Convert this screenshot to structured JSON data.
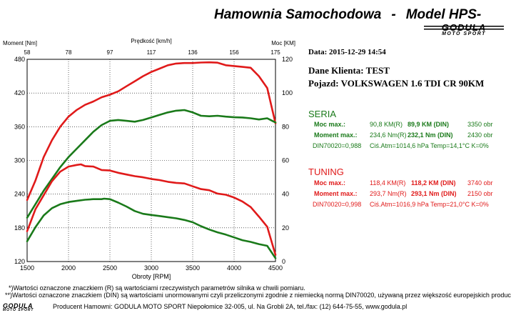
{
  "header": {
    "title_left": "Hamownia Samochodowa",
    "title_sep": "-",
    "title_right": "Model HPS-",
    "logo_main": "GODULA",
    "logo_sub": "MOTO SPORT"
  },
  "info": {
    "date": "Data: 2015-12-29  14:54",
    "client": "Dane Klienta: TEST",
    "vehicle": "Pojazd: VOLKSWAGEN 1.6 TDI CR 90KM"
  },
  "seria": {
    "heading": "SERIA",
    "power_label": "Moc max.:",
    "power_r": "90,8 KM(R)",
    "power_din": "89,9 KM (DIN)",
    "power_rpm": "3350 obr",
    "torque_label": "Moment max.:",
    "torque_r": "234,6 Nm(R)",
    "torque_din": "232,1 Nm (DIN)",
    "torque_rpm": "2430 obr",
    "norm": "DIN70020=0,988",
    "conditions": "Ciś.Atm=1014,6 hPa  Temp=14,1°C  K=0%"
  },
  "tuning": {
    "heading": "TUNING",
    "power_label": "Moc max.:",
    "power_r": "118,4 KM(R)",
    "power_din": "118,2 KM (DIN)",
    "power_rpm": "3740 obr",
    "torque_label": "Moment max.:",
    "torque_r": "293,7 Nm(R)",
    "torque_din": "293,1 Nm (DIN)",
    "torque_rpm": "2150 obr",
    "norm": "DIN70020=0,998",
    "conditions": "Ciś.Atm=1016,9 hPa  Temp=21,0°C  K=0%"
  },
  "footer": {
    "note1": "*)Wartości oznaczone znaczkiem (R) są wartościami rzeczywistych parametrów silnika w chwili pomiaru.",
    "note2": "**)Wartości oznaczone znaczkiem (DIN) są wartościami unormowanymi czyli przeliczonymi zgodnie z niemiecką normą DIN70020, używaną przez większość europejskich producentów.",
    "producer": "Producent Hamowni: GODULA MOTO SPORT Niepołomice 32-005, ul. Na Grobli 2A, tel./fax: (12) 644-75-55, www.godula.pl",
    "logo_main": "GODULA",
    "logo_sub": "MOTO SPORT"
  },
  "colors": {
    "seria": "#1a7a1a",
    "tuning": "#e01a1a",
    "grid": "#000000"
  },
  "chart_data": {
    "type": "line",
    "top_axis_label": "Prędkość [km/h]",
    "top_ticks": [
      "58",
      "78",
      "97",
      "117",
      "136",
      "156",
      "175"
    ],
    "left_axis_label": "Moment [Nm]",
    "right_axis_label": "Moc [KM]",
    "xlabel": "Obroty [RPM]",
    "xlim": [
      1500,
      4500
    ],
    "x_ticks": [
      1500,
      2000,
      2500,
      3000,
      3500,
      4000,
      4500
    ],
    "ylim_left": [
      120,
      480
    ],
    "y_left_ticks": [
      120,
      180,
      240,
      300,
      360,
      420,
      480
    ],
    "ylim_right": [
      0,
      120
    ],
    "y_right_ticks": [
      0,
      20,
      40,
      60,
      80,
      100,
      120
    ],
    "grid": true,
    "series": [
      {
        "name": "TUNING",
        "kind": "power",
        "axis": "right",
        "color": "#e01a1a",
        "x": [
          1500,
          1600,
          1700,
          1800,
          1900,
          2000,
          2100,
          2200,
          2300,
          2400,
          2500,
          2600,
          2700,
          2800,
          2900,
          3000,
          3100,
          3200,
          3300,
          3400,
          3500,
          3600,
          3700,
          3800,
          3900,
          4000,
          4100,
          4200,
          4300,
          4400,
          4500
        ],
        "y": [
          36.5,
          48,
          62,
          72,
          80,
          86,
          90,
          93,
          95,
          97.5,
          99,
          101,
          104,
          107,
          110,
          112.5,
          114.5,
          116.5,
          117.5,
          117.8,
          117.8,
          118.1,
          118.2,
          118.0,
          116.5,
          116,
          115.5,
          115,
          110,
          103,
          82
        ]
      },
      {
        "name": "SERIA",
        "kind": "power",
        "axis": "right",
        "color": "#1a7a1a",
        "x": [
          1500,
          1600,
          1700,
          1800,
          1900,
          2000,
          2100,
          2200,
          2300,
          2400,
          2500,
          2600,
          2700,
          2800,
          2900,
          3000,
          3100,
          3200,
          3300,
          3400,
          3500,
          3600,
          3700,
          3800,
          3900,
          4000,
          4100,
          4200,
          4300,
          4400,
          4500
        ],
        "y": [
          26,
          34,
          42,
          49,
          56,
          62,
          67,
          72,
          77,
          81,
          83.5,
          84,
          83.5,
          83,
          84,
          85.5,
          87,
          88.5,
          89.5,
          89.9,
          88.5,
          86.5,
          86.2,
          86.5,
          86,
          85.6,
          85.5,
          85,
          84.3,
          85,
          82.5
        ]
      },
      {
        "name": "TUNING",
        "kind": "torque",
        "axis": "left",
        "color": "#e01a1a",
        "x": [
          1500,
          1600,
          1700,
          1800,
          1900,
          2000,
          2100,
          2150,
          2200,
          2300,
          2400,
          2500,
          2600,
          2700,
          2800,
          2900,
          3000,
          3100,
          3200,
          3300,
          3400,
          3500,
          3600,
          3700,
          3800,
          3900,
          4000,
          4100,
          4200,
          4300,
          4400,
          4500
        ],
        "y": [
          174,
          213,
          238,
          263,
          280,
          289,
          292,
          293,
          290,
          289,
          283,
          282,
          278,
          275,
          272,
          270,
          267,
          265,
          262,
          260,
          259,
          254,
          249,
          247,
          241,
          239,
          234,
          227,
          217,
          200,
          182,
          132
        ]
      },
      {
        "name": "SERIA",
        "kind": "torque",
        "axis": "left",
        "color": "#1a7a1a",
        "x": [
          1500,
          1600,
          1700,
          1800,
          1900,
          2000,
          2100,
          2200,
          2300,
          2400,
          2430,
          2500,
          2600,
          2700,
          2800,
          2900,
          3000,
          3100,
          3200,
          3300,
          3400,
          3500,
          3600,
          3700,
          3800,
          3900,
          4000,
          4100,
          4200,
          4300,
          4400,
          4500
        ],
        "y": [
          156,
          181,
          202,
          215,
          222,
          226,
          228,
          230,
          231,
          231,
          232,
          231,
          225,
          218,
          210,
          205,
          203,
          201,
          199,
          197,
          194,
          190,
          183,
          177,
          172,
          168,
          163,
          158,
          155,
          151,
          148,
          126
        ]
      }
    ]
  }
}
